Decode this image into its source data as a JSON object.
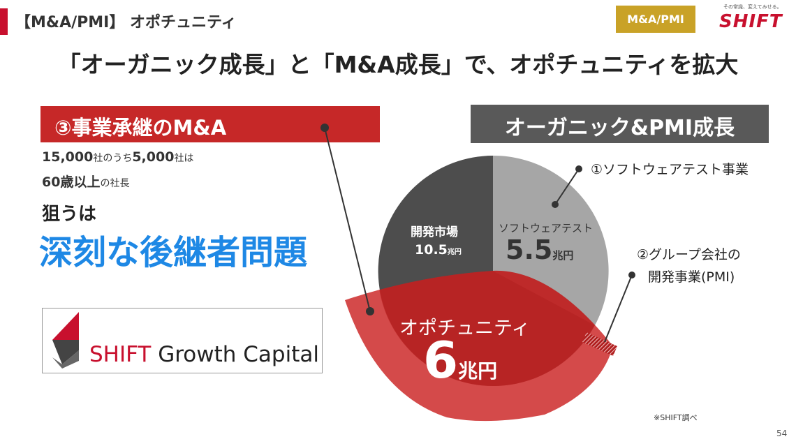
{
  "header": {
    "title": "【M&A/PMI】 オポチュニティ",
    "tag": "M&A/PMI",
    "logo_tagline": "その常識、変えてみせる。",
    "logo": "SHIFT"
  },
  "main_title": "「オーガニック成長」と「M&A成長」で、オポチュニティを拡大",
  "left": {
    "banner": "③事業承継のM&A",
    "line1_a": "15,000",
    "line1_b": "社のうち",
    "line1_c": "5,000",
    "line1_d": "社は",
    "line2_a": "60",
    "line2_b": "歳以上",
    "line2_c": "の社長",
    "aim": "狙うは",
    "headline": "深刻な後継者問題",
    "capital_logo_1": "SHIFT",
    "capital_logo_2": " Growth Capital"
  },
  "right": {
    "banner": "オーガニック&PMI成長",
    "callout1": "①ソフトウェアテスト事業",
    "callout2_line1": "②グループ会社の",
    "callout2_line2": "開発事業(PMI)"
  },
  "pie": {
    "dev_label": "開発市場",
    "dev_value": "10.5",
    "dev_unit": "兆円",
    "test_label": "ソフトウェアテスト",
    "test_value": "5.5",
    "test_unit": "兆円",
    "opp_label": "オポチュニティ",
    "opp_value": "6",
    "opp_unit": "兆円"
  },
  "colors": {
    "accent_red": "#c62828",
    "gold": "#c9a227",
    "dark_gray": "#595959",
    "pie_gray_dark": "#4d4d4d",
    "pie_gray_light": "#a6a6a6",
    "headline_blue": "#1e88e5"
  },
  "footnote": "※SHIFT調べ",
  "page_number": "54"
}
